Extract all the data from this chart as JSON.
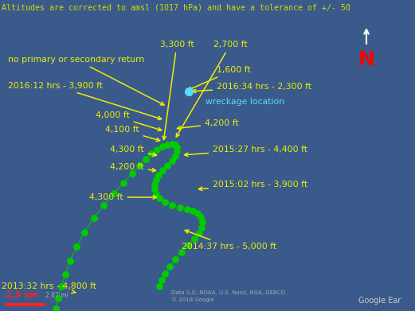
{
  "bg_color": "#3a5a8c",
  "title_text": "Altitudes are corrected to amsl (1017 hPa) and have a tolerance of +/- 50",
  "title_color": "#ccdd00",
  "title_fontsize": 7.2,
  "dot_color": "#00cc00",
  "dot_size": 40,
  "wreckage_color": "#55ddff",
  "arrow_color": "#eeee00",
  "label_color": "#eeee00",
  "label_fontsize": 7.8,
  "north_color": "#ff0000",
  "scale_text": "2.5 nm",
  "scale_color": "#ff2222",
  "attribution": "Data S.O, NOAA, U.S. Navy, NGA, GEBCO\n© 2018 Google",
  "google_text": "Google Ear",
  "footer_color": "#bbbbbb"
}
